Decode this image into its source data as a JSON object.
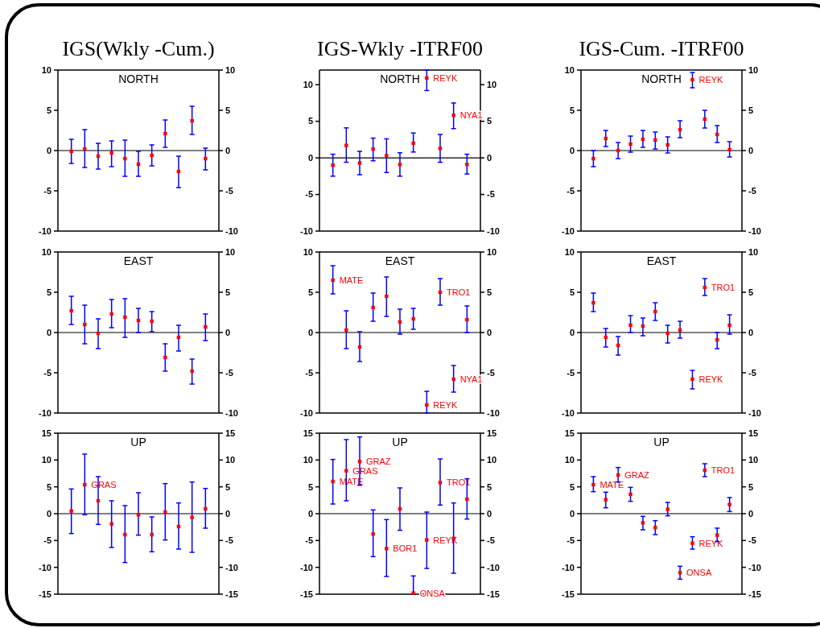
{
  "chart_data": [
    {
      "type": "scatter",
      "title": "IGS(Wkly -Cum.)",
      "subtitle": "NORTH",
      "categories": [
        null,
        null,
        null,
        null,
        null,
        null,
        null,
        null,
        null,
        null,
        null
      ],
      "series": [
        {
          "color": "#ff0000",
          "values": [
            -0.1,
            0.2,
            -0.7,
            -0.3,
            -1.0,
            -1.7,
            -0.6,
            2.1,
            -2.6,
            3.7,
            -1.0
          ],
          "errors": [
            [
              -1.6,
              1.4
            ],
            [
              -2.1,
              2.6
            ],
            [
              -2.3,
              0.9
            ],
            [
              -2.0,
              1.2
            ],
            [
              -3.2,
              1.3
            ],
            [
              -3.2,
              -0.1
            ],
            [
              -1.9,
              0.7
            ],
            [
              0.4,
              3.8
            ],
            [
              -4.6,
              -0.7
            ],
            [
              2.0,
              5.5
            ],
            [
              -2.4,
              0.3
            ]
          ]
        }
      ],
      "ylim": [
        -10,
        10
      ],
      "yticks": [
        -10,
        -5,
        0,
        5,
        10
      ],
      "y2lim": [
        -10,
        10
      ],
      "y2ticks": [
        -10,
        -5,
        0,
        5,
        10
      ],
      "tick_labels": "y",
      "marker": "square",
      "ref_lines": [
        {
          "axis": "y",
          "value": 0
        }
      ]
    },
    {
      "type": "scatter",
      "title": "IGS-Wkly -ITRF00",
      "subtitle": "NORTH",
      "categories": [
        null,
        null,
        null,
        null,
        null,
        null,
        null,
        null,
        null,
        null,
        null
      ],
      "series": [
        {
          "color": "#ff0000",
          "values": [
            -1.0,
            1.7,
            -0.7,
            1.2,
            0.3,
            -0.9,
            2.0,
            10.9,
            1.3,
            5.8,
            -0.9
          ],
          "errors": [
            [
              -2.5,
              0.5
            ],
            [
              -0.6,
              4.1
            ],
            [
              -2.3,
              0.9
            ],
            [
              -0.4,
              2.7
            ],
            [
              -2.0,
              2.6
            ],
            [
              -2.5,
              0.7
            ],
            [
              0.8,
              3.4
            ],
            [
              9.2,
              12
            ],
            [
              -0.6,
              3.2
            ],
            [
              4.0,
              7.5
            ],
            [
              -2.2,
              0.5
            ]
          ],
          "value_labels": [
            null,
            null,
            null,
            null,
            null,
            null,
            null,
            "REYK",
            null,
            "NYA1",
            null
          ]
        }
      ],
      "ylim": [
        -10,
        12
      ],
      "yticks": [
        -10,
        -5,
        0,
        5,
        10
      ],
      "y2lim": [
        -10,
        12
      ],
      "y2ticks": [
        -10,
        -5,
        0,
        5,
        10
      ],
      "tick_labels": "y",
      "marker": "square",
      "ref_lines": [
        {
          "axis": "y",
          "value": 0
        }
      ]
    },
    {
      "type": "scatter",
      "title": "IGS-Cum. -ITRF00",
      "subtitle": "NORTH",
      "categories": [
        null,
        null,
        null,
        null,
        null,
        null,
        null,
        null,
        null,
        null,
        null,
        null
      ],
      "series": [
        {
          "color": "#ff0000",
          "values": [
            -1.0,
            1.5,
            0.0,
            0.8,
            1.4,
            1.3,
            0.7,
            2.6,
            8.8,
            3.9,
            2.0,
            0.1
          ],
          "errors": [
            [
              -2.0,
              0.0
            ],
            [
              0.5,
              2.5
            ],
            [
              -1.0,
              1.0
            ],
            [
              -0.2,
              1.8
            ],
            [
              0.4,
              2.5
            ],
            [
              0.2,
              2.3
            ],
            [
              -0.3,
              1.7
            ],
            [
              1.6,
              3.7
            ],
            [
              7.8,
              9.7
            ],
            [
              2.8,
              5.0
            ],
            [
              1.0,
              3.1
            ],
            [
              -0.8,
              1.1
            ]
          ],
          "value_labels": [
            null,
            null,
            null,
            null,
            null,
            null,
            null,
            null,
            "REYK",
            null,
            null,
            null
          ]
        }
      ],
      "ylim": [
        -10,
        10
      ],
      "yticks": [
        -10,
        -5,
        0,
        5,
        10
      ],
      "y2lim": [
        -10,
        10
      ],
      "y2ticks": [
        -10,
        -5,
        0,
        5,
        10
      ],
      "tick_labels": "y",
      "marker": "square",
      "ref_lines": [
        {
          "axis": "y",
          "value": 0
        }
      ]
    },
    {
      "type": "scatter",
      "subtitle": "EAST",
      "categories": [
        null,
        null,
        null,
        null,
        null,
        null,
        null,
        null,
        null,
        null,
        null
      ],
      "series": [
        {
          "color": "#ff0000",
          "values": [
            2.7,
            1.0,
            -0.1,
            2.3,
            1.9,
            1.5,
            1.4,
            -3.1,
            -0.6,
            -4.8,
            0.7
          ],
          "errors": [
            [
              1.0,
              4.5
            ],
            [
              -1.4,
              3.4
            ],
            [
              -2.0,
              1.7
            ],
            [
              0.6,
              4.1
            ],
            [
              -0.6,
              4.2
            ],
            [
              0.0,
              3.0
            ],
            [
              0.1,
              2.6
            ],
            [
              -4.8,
              -1.4
            ],
            [
              -2.3,
              0.9
            ],
            [
              -6.4,
              -3.3
            ],
            [
              -1.0,
              2.3
            ]
          ]
        }
      ],
      "ylim": [
        -10,
        10
      ],
      "yticks": [
        -10,
        -5,
        0,
        5,
        10
      ],
      "y2lim": [
        -10,
        10
      ],
      "y2ticks": [
        -10,
        -5,
        0,
        5,
        10
      ],
      "tick_labels": "y",
      "marker": "square",
      "ref_lines": [
        {
          "axis": "y",
          "value": 0
        }
      ]
    },
    {
      "type": "scatter",
      "subtitle": "EAST",
      "categories": [
        null,
        null,
        null,
        null,
        null,
        null,
        null,
        null,
        null,
        null,
        null
      ],
      "series": [
        {
          "color": "#ff0000",
          "values": [
            6.5,
            0.3,
            -1.8,
            3.1,
            4.5,
            1.3,
            1.7,
            -9.0,
            5.0,
            -5.8,
            1.6
          ],
          "errors": [
            [
              4.8,
              8.3
            ],
            [
              -2.0,
              2.7
            ],
            [
              -3.6,
              0.1
            ],
            [
              1.4,
              4.9
            ],
            [
              2.0,
              6.9
            ],
            [
              -0.2,
              2.9
            ],
            [
              0.4,
              3.0
            ],
            [
              -10,
              -7.3
            ],
            [
              3.4,
              6.7
            ],
            [
              -7.4,
              -4.1
            ],
            [
              0.0,
              3.3
            ]
          ],
          "value_labels": [
            "MATE",
            null,
            null,
            null,
            null,
            null,
            null,
            "REYK",
            "TRO1",
            "NYA1",
            null
          ]
        }
      ],
      "ylim": [
        -10,
        10
      ],
      "yticks": [
        -10,
        -5,
        0,
        5,
        10
      ],
      "y2lim": [
        -10,
        10
      ],
      "y2ticks": [
        -10,
        -5,
        0,
        5,
        10
      ],
      "tick_labels": "y",
      "marker": "square",
      "ref_lines": [
        {
          "axis": "y",
          "value": 0
        }
      ]
    },
    {
      "type": "scatter",
      "subtitle": "EAST",
      "categories": [
        null,
        null,
        null,
        null,
        null,
        null,
        null,
        null,
        null,
        null,
        null,
        null
      ],
      "series": [
        {
          "color": "#ff0000",
          "values": [
            3.7,
            -0.6,
            -1.6,
            0.9,
            0.8,
            2.6,
            -0.1,
            0.3,
            -5.8,
            5.6,
            -0.9,
            0.9
          ],
          "errors": [
            [
              2.6,
              4.9
            ],
            [
              -1.8,
              0.5
            ],
            [
              -2.8,
              -0.5
            ],
            [
              0.0,
              2.1
            ],
            [
              -0.4,
              1.8
            ],
            [
              1.5,
              3.7
            ],
            [
              -1.3,
              0.9
            ],
            [
              -0.7,
              1.4
            ],
            [
              -7.0,
              -4.7
            ],
            [
              4.6,
              6.7
            ],
            [
              -2.0,
              0.0
            ],
            [
              -0.2,
              2.2
            ]
          ],
          "value_labels": [
            null,
            null,
            null,
            null,
            null,
            null,
            null,
            null,
            "REYK",
            "TRO1",
            null,
            null
          ]
        }
      ],
      "ylim": [
        -10,
        10
      ],
      "yticks": [
        -10,
        -5,
        0,
        5,
        10
      ],
      "y2lim": [
        -10,
        10
      ],
      "y2ticks": [
        -10,
        -5,
        0,
        5,
        10
      ],
      "tick_labels": "y",
      "marker": "square",
      "ref_lines": [
        {
          "axis": "y",
          "value": 0
        }
      ]
    },
    {
      "type": "scatter",
      "subtitle": "UP",
      "categories": [
        null,
        null,
        null,
        null,
        null,
        null,
        null,
        null,
        null,
        null,
        null
      ],
      "series": [
        {
          "color": "#ff0000",
          "values": [
            0.5,
            5.4,
            2.4,
            -1.9,
            -3.9,
            -0.2,
            -3.9,
            0.3,
            -2.4,
            -0.7,
            0.9
          ],
          "errors": [
            [
              -3.7,
              4.6
            ],
            [
              -0.2,
              11.1
            ],
            [
              -2.0,
              6.9
            ],
            [
              -6.3,
              2.4
            ],
            [
              -9.1,
              1.5
            ],
            [
              -4.0,
              3.9
            ],
            [
              -7.1,
              -0.6
            ],
            [
              -4.9,
              5.6
            ],
            [
              -6.6,
              2.0
            ],
            [
              -7.2,
              5.9
            ],
            [
              -2.7,
              4.7
            ]
          ],
          "value_labels": [
            null,
            "GRAS",
            null,
            null,
            null,
            null,
            null,
            null,
            null,
            null,
            null
          ]
        }
      ],
      "ylim": [
        -15,
        15
      ],
      "yticks": [
        -15,
        -10,
        -5,
        0,
        5,
        10,
        15
      ],
      "y2lim": [
        -15,
        15
      ],
      "y2ticks": [
        -15,
        -10,
        -5,
        0,
        5,
        10,
        15
      ],
      "tick_labels": "y",
      "marker": "square",
      "ref_lines": [
        {
          "axis": "y",
          "value": 0
        }
      ]
    },
    {
      "type": "scatter",
      "subtitle": "UP",
      "categories": [
        null,
        null,
        null,
        null,
        null,
        null,
        null,
        null,
        null,
        null,
        null
      ],
      "series": [
        {
          "color": "#ff0000",
          "values": [
            6.0,
            8.0,
            9.7,
            -3.8,
            -6.5,
            0.9,
            -14.8,
            -4.9,
            5.8,
            -4.6,
            2.7
          ],
          "errors": [
            [
              1.8,
              10.1
            ],
            [
              2.4,
              13.8
            ],
            [
              5.3,
              14.3
            ],
            [
              -8.0,
              0.7
            ],
            [
              -11.7,
              -1.1
            ],
            [
              -3.1,
              4.8
            ],
            [
              -15,
              -11.6
            ],
            [
              -10.2,
              0.3
            ],
            [
              1.6,
              10.2
            ],
            [
              -11.1,
              2.0
            ],
            [
              -1.0,
              6.5
            ]
          ],
          "value_labels": [
            "MATE",
            "GRAS",
            "GRAZ",
            null,
            "BOR1",
            null,
            "ONSA",
            "REYK",
            "TRO1",
            null,
            null
          ]
        }
      ],
      "ylim": [
        -15,
        15
      ],
      "yticks": [
        -15,
        -10,
        -5,
        0,
        5,
        10,
        15
      ],
      "y2lim": [
        -15,
        15
      ],
      "y2ticks": [
        -15,
        -10,
        -5,
        0,
        5,
        10,
        15
      ],
      "tick_labels": "y",
      "marker": "square",
      "ref_lines": [
        {
          "axis": "y",
          "value": 0
        }
      ]
    },
    {
      "type": "scatter",
      "subtitle": "UP",
      "categories": [
        null,
        null,
        null,
        null,
        null,
        null,
        null,
        null,
        null,
        null,
        null,
        null
      ],
      "series": [
        {
          "color": "#ff0000",
          "values": [
            5.4,
            2.6,
            7.2,
            3.6,
            -1.7,
            -2.6,
            0.8,
            -11.0,
            -5.5,
            8.1,
            -4.0,
            1.7
          ],
          "errors": [
            [
              4.1,
              6.9
            ],
            [
              1.1,
              4.0
            ],
            [
              5.9,
              8.6
            ],
            [
              2.3,
              4.9
            ],
            [
              -3.0,
              -0.5
            ],
            [
              -3.9,
              -1.3
            ],
            [
              -0.4,
              2.1
            ],
            [
              -12.2,
              -9.8
            ],
            [
              -6.6,
              -4.3
            ],
            [
              6.9,
              9.3
            ],
            [
              -5.2,
              -2.7
            ],
            [
              0.4,
              3.0
            ]
          ],
          "value_labels": [
            "MATE",
            null,
            "GRAZ",
            null,
            null,
            null,
            null,
            "ONSA",
            "REYK",
            "TRO1",
            null,
            null
          ]
        }
      ],
      "ylim": [
        -15,
        15
      ],
      "yticks": [
        -15,
        -10,
        -5,
        0,
        5,
        10,
        15
      ],
      "y2lim": [
        -15,
        15
      ],
      "y2ticks": [
        -15,
        -10,
        -5,
        0,
        5,
        10,
        15
      ],
      "tick_labels": "y",
      "marker": "square",
      "ref_lines": [
        {
          "axis": "y",
          "value": 0
        }
      ]
    }
  ]
}
